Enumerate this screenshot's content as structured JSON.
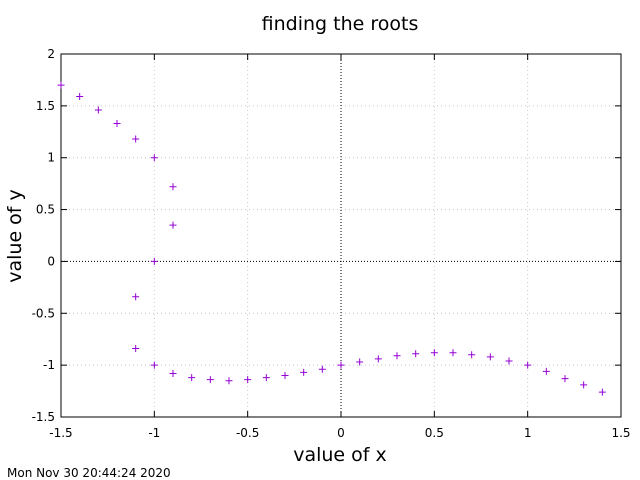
{
  "chart_data": {
    "type": "scatter",
    "title": "finding the roots",
    "xlabel": "value of x",
    "ylabel": "value of y",
    "xlim": [
      -1.5,
      1.5
    ],
    "ylim": [
      -1.5,
      2
    ],
    "xticks": [
      -1.5,
      -1,
      -0.5,
      0,
      0.5,
      1,
      1.5
    ],
    "yticks": [
      -1.5,
      -1,
      -0.5,
      0,
      0.5,
      1,
      1.5,
      2
    ],
    "xtick_labels": [
      "-1.5",
      "-1",
      "-0.5",
      "0",
      "0.5",
      "1",
      "1.5"
    ],
    "ytick_labels": [
      "-1.5",
      "-1",
      "-0.5",
      "0",
      "0.5",
      "1",
      "1.5",
      "2"
    ],
    "grid": true,
    "zero_axes": true,
    "marker": "plus",
    "marker_color": "#9400d3",
    "points": [
      [
        -1.5,
        1.7
      ],
      [
        -1.4,
        1.59
      ],
      [
        -1.3,
        1.46
      ],
      [
        -1.2,
        1.33
      ],
      [
        -1.1,
        1.18
      ],
      [
        -1.0,
        1.0
      ],
      [
        -0.9,
        0.72
      ],
      [
        -0.9,
        0.35
      ],
      [
        -1.0,
        0.0
      ],
      [
        -1.1,
        -0.34
      ],
      [
        -1.1,
        -0.84
      ],
      [
        -1.0,
        -1.0
      ],
      [
        -0.9,
        -1.08
      ],
      [
        -0.8,
        -1.12
      ],
      [
        -0.7,
        -1.14
      ],
      [
        -0.6,
        -1.15
      ],
      [
        -0.5,
        -1.14
      ],
      [
        -0.4,
        -1.12
      ],
      [
        -0.3,
        -1.1
      ],
      [
        -0.2,
        -1.07
      ],
      [
        -0.1,
        -1.04
      ],
      [
        0.0,
        -1.0
      ],
      [
        0.1,
        -0.97
      ],
      [
        0.2,
        -0.94
      ],
      [
        0.3,
        -0.91
      ],
      [
        0.4,
        -0.89
      ],
      [
        0.5,
        -0.88
      ],
      [
        0.6,
        -0.88
      ],
      [
        0.7,
        -0.9
      ],
      [
        0.8,
        -0.92
      ],
      [
        0.9,
        -0.96
      ],
      [
        1.0,
        -1.0
      ],
      [
        1.1,
        -1.06
      ],
      [
        1.2,
        -1.13
      ],
      [
        1.3,
        -1.19
      ],
      [
        1.4,
        -1.26
      ]
    ]
  },
  "timestamp": "Mon Nov 30 20:44:24 2020"
}
